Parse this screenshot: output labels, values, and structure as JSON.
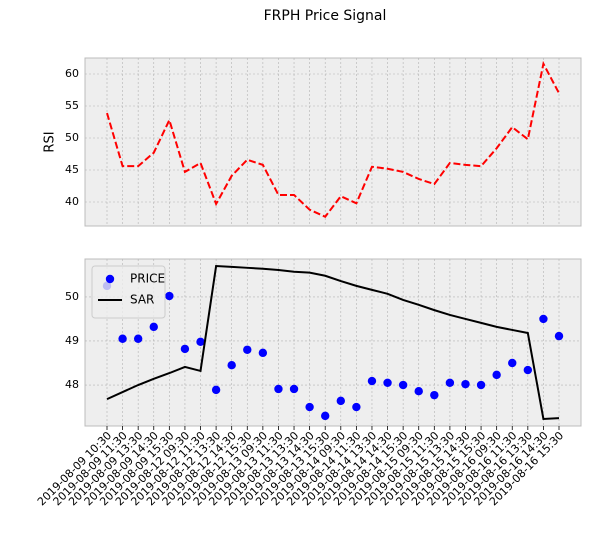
{
  "title": "FRPH Price Signal",
  "chart_data": [
    {
      "type": "line",
      "ylabel": "RSI",
      "ylim": [
        36.25,
        62.5
      ],
      "yticks": [
        40,
        45,
        50,
        55,
        60
      ],
      "grid": true,
      "series": [
        {
          "color": "#ff0000",
          "line_style": "dashed",
          "values": [
            53.9,
            45.6,
            45.6,
            47.7,
            52.8,
            44.7,
            46.1,
            39.7,
            44.1,
            46.6,
            45.8,
            41.1,
            41.1,
            38.8,
            37.7,
            40.9,
            39.8,
            45.5,
            45.2,
            44.7,
            43.6,
            42.8,
            46.1,
            45.8,
            45.6,
            48.4,
            51.7,
            49.8,
            61.6,
            57.0
          ]
        }
      ]
    },
    {
      "type": "combo",
      "ylim": [
        47.07,
        50.86
      ],
      "yticks": [
        48,
        49,
        50
      ],
      "grid": true,
      "legend": "upper left",
      "categories": [
        "2019-08-09 10:30",
        "2019-08-09 11:30",
        "2019-08-09 13:30",
        "2019-08-09 14:30",
        "2019-08-09 15:30",
        "2019-08-12 09:30",
        "2019-08-12 11:30",
        "2019-08-12 13:30",
        "2019-08-12 14:30",
        "2019-08-12 15:30",
        "2019-08-13 09:30",
        "2019-08-13 11:30",
        "2019-08-13 13:30",
        "2019-08-13 14:30",
        "2019-08-13 15:30",
        "2019-08-14 09:30",
        "2019-08-14 11:30",
        "2019-08-14 13:30",
        "2019-08-14 14:30",
        "2019-08-14 15:30",
        "2019-08-15 09:30",
        "2019-08-15 11:30",
        "2019-08-15 13:30",
        "2019-08-15 14:30",
        "2019-08-15 15:30",
        "2019-08-16 09:30",
        "2019-08-16 11:30",
        "2019-08-16 13:30",
        "2019-08-16 14:30",
        "2019-08-16 15:30"
      ],
      "series": [
        {
          "name": "PRICE",
          "type": "scatter",
          "color": "#0000ff",
          "values": [
            50.25,
            49.05,
            49.05,
            49.32,
            50.02,
            48.82,
            48.98,
            47.89,
            48.45,
            48.8,
            48.73,
            47.91,
            47.91,
            47.5,
            47.3,
            47.64,
            47.5,
            48.09,
            48.05,
            48.0,
            47.86,
            47.77,
            48.05,
            48.02,
            48.0,
            48.23,
            48.5,
            48.34,
            49.5,
            49.11
          ]
        },
        {
          "name": "SAR",
          "type": "line",
          "color": "#000000",
          "values": [
            47.68,
            47.84,
            48.0,
            48.14,
            48.27,
            48.41,
            48.32,
            50.7,
            50.68,
            50.66,
            50.64,
            50.61,
            50.57,
            50.55,
            50.48,
            50.36,
            50.25,
            50.16,
            50.07,
            49.93,
            49.82,
            49.7,
            49.59,
            49.5,
            49.41,
            49.32,
            49.25,
            49.18,
            47.23,
            47.25
          ]
        }
      ]
    }
  ]
}
